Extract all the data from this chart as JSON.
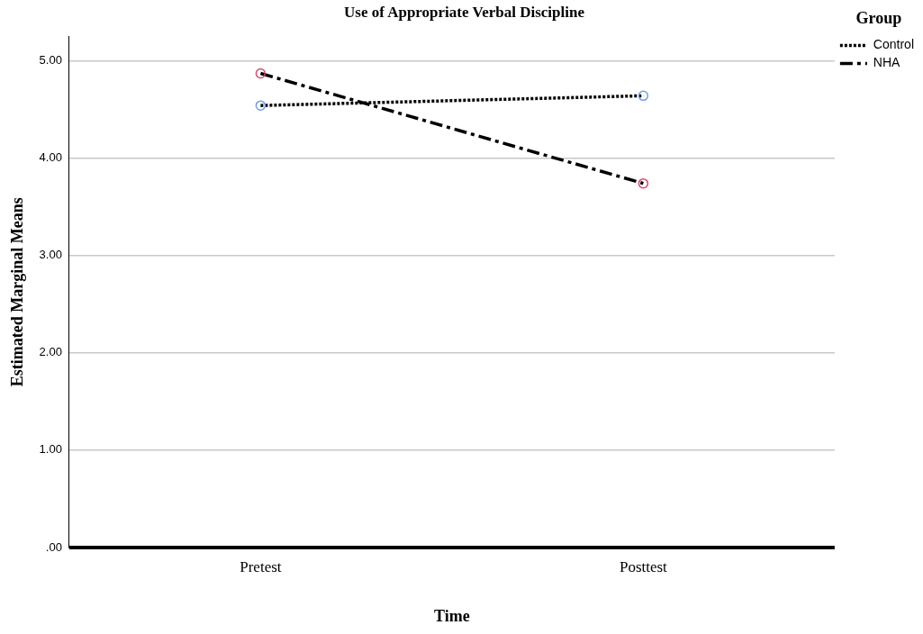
{
  "chart_data": {
    "type": "line",
    "title": "Use of Appropriate Verbal Discipline",
    "xlabel": "Time",
    "ylabel": "Estimated Marginal Means",
    "legend_title": "Group",
    "categories": [
      "Pretest",
      "Posttest"
    ],
    "series": [
      {
        "name": "Control",
        "color": "#000000",
        "colors": [
          "#6f9fe0",
          "#6f9fe0"
        ],
        "line_style": "dotted",
        "values": [
          4.54,
          4.64
        ]
      },
      {
        "name": "NHA",
        "color": "#000000",
        "colors": [
          "#d9486e",
          "#d9486e"
        ],
        "line_style": "dashdot",
        "values": [
          4.87,
          3.74
        ]
      }
    ],
    "ylim": [
      0,
      5.25
    ],
    "yticks": [
      {
        "value": 0,
        "label": ".00"
      },
      {
        "value": 1,
        "label": "1.00"
      },
      {
        "value": 2,
        "label": "2.00"
      },
      {
        "value": 3,
        "label": "3.00"
      },
      {
        "value": 4,
        "label": "4.00"
      },
      {
        "value": 5,
        "label": "5.00"
      }
    ],
    "grid": "y",
    "legend": "top right",
    "marker": "circle"
  }
}
